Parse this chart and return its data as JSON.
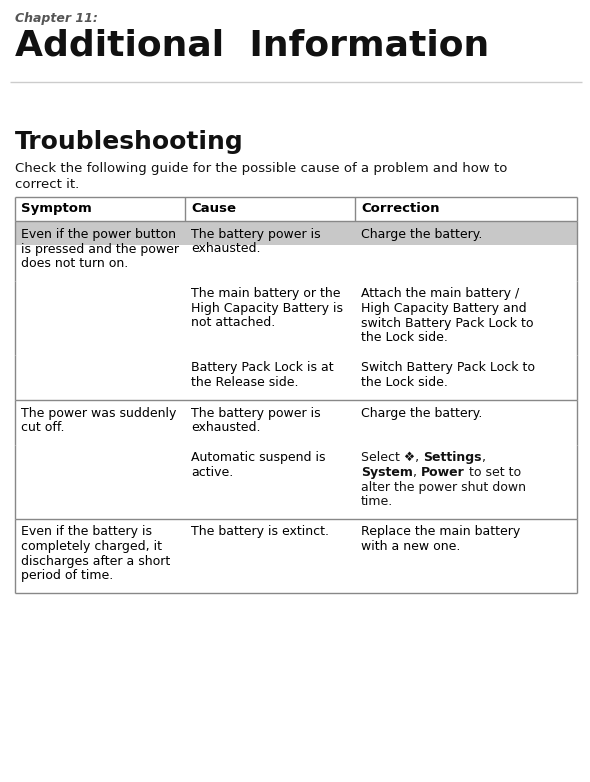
{
  "chapter_label": "Chapter 11:",
  "title": "Additional  Information",
  "section_title": "Troubleshooting",
  "intro_text": "Check the following guide for the possible cause of a problem and how to\ncorrect it.",
  "header_bg": "#c8c8c8",
  "body_bg": "#ffffff",
  "border_color": "#999999",
  "col_headers": [
    "Symptom",
    "Cause",
    "Correction"
  ],
  "rows": [
    {
      "symptom": "Even if the power button\nis pressed and the power\ndoes not turn on.",
      "cause": "The battery power is\nexhausted.",
      "correction": "Charge the battery.",
      "divider_above": false
    },
    {
      "symptom": "",
      "cause": "The main battery or the\nHigh Capacity Battery is\nnot attached.",
      "correction": "Attach the main battery /\nHigh Capacity Battery and\nswitch Battery Pack Lock to\nthe Lock side.",
      "divider_above": false
    },
    {
      "symptom": "",
      "cause": "Battery Pack Lock is at\nthe Release side.",
      "correction": "Switch Battery Pack Lock to\nthe Lock side.",
      "divider_above": false
    },
    {
      "symptom": "The power was suddenly\ncut off.",
      "cause": "The battery power is\nexhausted.",
      "correction": "Charge the battery.",
      "divider_above": true
    },
    {
      "symptom": "",
      "cause": "Automatic suspend is\nactive.",
      "correction": "Select ❖, {Settings},\n{System}, {Power} to set to\nalter the power shut down\ntime.",
      "has_bold": true,
      "divider_above": false
    },
    {
      "symptom": "Even if the battery is\ncompletely charged, it\ndischarges after a short\nperiod of time.",
      "cause": "The battery is extinct.",
      "correction": "Replace the main battery\nwith a new one.",
      "divider_above": true
    }
  ],
  "fig_width": 5.9,
  "fig_height": 7.82,
  "dpi": 100
}
